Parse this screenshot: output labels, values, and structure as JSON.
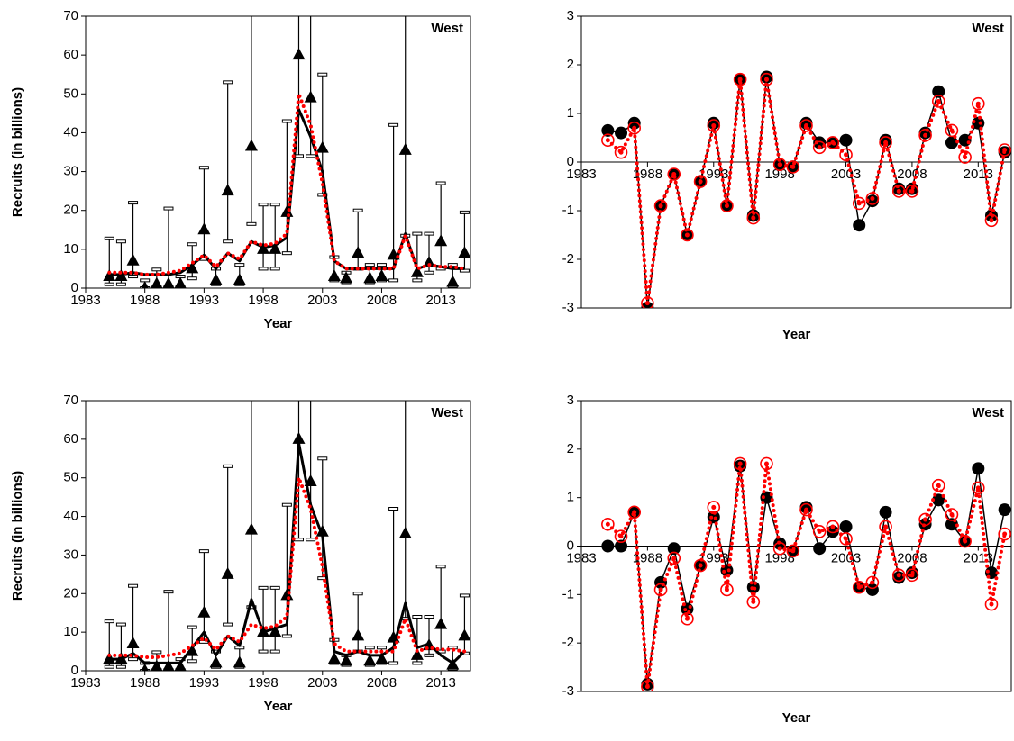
{
  "chart_data": [
    {
      "type": "line",
      "annotation": "West",
      "x_label": "Year",
      "y_label": "Recruits (in billions)",
      "x": [
        1985,
        1986,
        1987,
        1988,
        1989,
        1990,
        1991,
        1992,
        1993,
        1994,
        1995,
        1996,
        1997,
        1998,
        1999,
        2000,
        2001,
        2002,
        2003,
        2004,
        2005,
        2006,
        2007,
        2008,
        2009,
        2010,
        2011,
        2012,
        2013,
        2014,
        2015
      ],
      "xlim": [
        1983,
        2015.5
      ],
      "xticks": [
        1983,
        1988,
        1993,
        1998,
        2003,
        2008,
        2013
      ],
      "ylim": [
        0,
        70
      ],
      "yticks": [
        0,
        10,
        20,
        30,
        40,
        50,
        60,
        70
      ],
      "axis_at_zero": false,
      "series": [
        {
          "color": "#000000",
          "marker": "triangle",
          "values": [
            3,
            3,
            7,
            0,
            1,
            1,
            1,
            5,
            15,
            2,
            25,
            2,
            36.5,
            10,
            10,
            19.5,
            60,
            49,
            36,
            3,
            2.5,
            9,
            2.5,
            3,
            8.5,
            35.5,
            4,
            6.5,
            12,
            1.5,
            9
          ],
          "lower": [
            1,
            1,
            3,
            0,
            0.2,
            0.2,
            0.2,
            2.5,
            7.5,
            1,
            12,
            1,
            16.5,
            5,
            5,
            9,
            34,
            34,
            24,
            2,
            1.5,
            5,
            1.5,
            2,
            2,
            13.5,
            2,
            4,
            5,
            0.5,
            4.5
          ],
          "upper": [
            12.8,
            12,
            22,
            2,
            4.8,
            20.5,
            3,
            11.3,
            31,
            5,
            53,
            6,
            120,
            21.5,
            21.5,
            43,
            150,
            130,
            55,
            8,
            4,
            20,
            6,
            6,
            42,
            100,
            14,
            14,
            27,
            6,
            19.5
          ]
        },
        {
          "color": "#000000",
          "dash": "solid",
          "width": 3,
          "values": [
            3.5,
            3.5,
            4,
            3.5,
            3.5,
            3.5,
            4,
            6,
            8.5,
            5,
            9,
            7,
            12,
            10.5,
            11,
            13,
            46,
            39,
            30,
            7,
            5,
            5,
            5,
            5,
            5,
            14,
            5,
            6,
            5.5,
            5,
            5
          ]
        },
        {
          "color": "#ff0000",
          "dash": "dotted",
          "width": 4,
          "values": [
            4,
            4,
            4,
            3.5,
            3.5,
            4,
            4.5,
            6.5,
            8.5,
            5.5,
            9,
            7.5,
            12,
            11,
            11.5,
            14,
            50,
            42,
            27,
            7,
            5,
            5,
            5,
            5,
            5,
            13.5,
            5,
            6,
            5.5,
            5.5,
            5
          ]
        }
      ]
    },
    {
      "type": "line",
      "annotation": "West",
      "x_label": "Year",
      "x": [
        1985,
        1986,
        1987,
        1988,
        1989,
        1990,
        1991,
        1992,
        1993,
        1994,
        1995,
        1996,
        1997,
        1998,
        1999,
        2000,
        2001,
        2002,
        2003,
        2004,
        2005,
        2006,
        2007,
        2008,
        2009,
        2010,
        2011,
        2012,
        2013,
        2014,
        2015
      ],
      "xlim": [
        1983,
        2015.5
      ],
      "xticks": [
        1983,
        1988,
        1993,
        1998,
        2003,
        2008,
        2013
      ],
      "ylim": [
        -3,
        3
      ],
      "yticks": [
        -3,
        -2,
        -1,
        0,
        1,
        2,
        3
      ],
      "axis_at_zero": true,
      "series": [
        {
          "color": "#000000",
          "dash": "solid",
          "width": 1.5,
          "marker": "circle",
          "values": [
            0.65,
            0.6,
            0.8,
            -3,
            -0.9,
            -0.25,
            -1.5,
            -0.4,
            0.8,
            -0.9,
            1.7,
            -1.1,
            1.75,
            -0.05,
            -0.1,
            0.8,
            0.4,
            0.4,
            0.45,
            -1.3,
            -0.8,
            0.45,
            -0.55,
            -0.55,
            0.6,
            1.45,
            0.4,
            0.45,
            0.8,
            -1.1,
            0.2
          ]
        },
        {
          "color": "#ff0000",
          "dash": "dotted",
          "width": 4,
          "marker": "circle-open",
          "values": [
            0.45,
            0.2,
            0.7,
            -2.9,
            -0.9,
            -0.25,
            -1.5,
            -0.4,
            0.75,
            -0.9,
            1.7,
            -1.15,
            1.7,
            -0.05,
            -0.1,
            0.75,
            0.3,
            0.4,
            0.15,
            -0.85,
            -0.75,
            0.4,
            -0.6,
            -0.6,
            0.55,
            1.25,
            0.65,
            0.1,
            1.2,
            -1.2,
            0.25
          ]
        }
      ]
    },
    {
      "type": "line",
      "annotation": "West",
      "x_label": "Year",
      "y_label": "Recruits (in billions)",
      "x": [
        1985,
        1986,
        1987,
        1988,
        1989,
        1990,
        1991,
        1992,
        1993,
        1994,
        1995,
        1996,
        1997,
        1998,
        1999,
        2000,
        2001,
        2002,
        2003,
        2004,
        2005,
        2006,
        2007,
        2008,
        2009,
        2010,
        2011,
        2012,
        2013,
        2014,
        2015
      ],
      "xlim": [
        1983,
        2015.5
      ],
      "xticks": [
        1983,
        1988,
        1993,
        1998,
        2003,
        2008,
        2013
      ],
      "ylim": [
        0,
        70
      ],
      "yticks": [
        0,
        10,
        20,
        30,
        40,
        50,
        60,
        70
      ],
      "axis_at_zero": false,
      "series": [
        {
          "color": "#000000",
          "marker": "triangle",
          "values": [
            3,
            3,
            7,
            0,
            1,
            1,
            1,
            5,
            15,
            2,
            25,
            2,
            36.5,
            10,
            10,
            19.5,
            60,
            49,
            36,
            3,
            2.5,
            9,
            2.5,
            3,
            8.5,
            35.5,
            4,
            6.5,
            12,
            1.5,
            9
          ],
          "lower": [
            1,
            1,
            3,
            0,
            0.2,
            0.2,
            0.2,
            2.5,
            7.5,
            1,
            12,
            1,
            16.5,
            5,
            5,
            9,
            34,
            34,
            24,
            2,
            1.5,
            5,
            1.5,
            2,
            2,
            13.5,
            2,
            4,
            5,
            0.5,
            4.5
          ],
          "upper": [
            12.8,
            12,
            22,
            2,
            4.8,
            20.5,
            3,
            11.3,
            31,
            5,
            53,
            6,
            120,
            21.5,
            21.5,
            43,
            150,
            130,
            55,
            8,
            4,
            20,
            6,
            6,
            42,
            100,
            14,
            14,
            27,
            6,
            19.5
          ]
        },
        {
          "color": "#000000",
          "dash": "solid",
          "width": 3,
          "values": [
            3,
            3,
            4.5,
            2,
            2,
            2,
            2,
            6,
            10,
            4,
            9,
            6.5,
            18.5,
            10,
            11,
            12,
            59,
            43,
            35,
            5,
            4,
            5,
            4,
            4,
            6,
            17.5,
            6,
            7,
            4,
            2,
            5
          ]
        },
        {
          "color": "#ff0000",
          "dash": "dotted",
          "width": 4,
          "values": [
            4,
            4,
            4,
            3.5,
            3.5,
            4,
            4.5,
            6.5,
            8.5,
            5.5,
            9,
            7.5,
            12,
            11,
            11.5,
            14,
            50,
            42,
            27,
            7,
            5,
            5,
            5,
            5,
            5,
            13.5,
            5,
            6,
            5.5,
            5.5,
            5
          ]
        }
      ]
    },
    {
      "type": "line",
      "annotation": "West",
      "x_label": "Year",
      "x": [
        1985,
        1986,
        1987,
        1988,
        1989,
        1990,
        1991,
        1992,
        1993,
        1994,
        1995,
        1996,
        1997,
        1998,
        1999,
        2000,
        2001,
        2002,
        2003,
        2004,
        2005,
        2006,
        2007,
        2008,
        2009,
        2010,
        2011,
        2012,
        2013,
        2014,
        2015
      ],
      "xlim": [
        1983,
        2015.5
      ],
      "xticks": [
        1983,
        1988,
        1993,
        1998,
        2003,
        2008,
        2013
      ],
      "ylim": [
        -3,
        3
      ],
      "yticks": [
        -3,
        -2,
        -1,
        0,
        1,
        2,
        3
      ],
      "axis_at_zero": true,
      "series": [
        {
          "color": "#000000",
          "dash": "solid",
          "width": 1.5,
          "marker": "circle",
          "values": [
            0,
            0,
            0.7,
            -2.85,
            -0.75,
            -0.05,
            -1.3,
            -0.4,
            0.6,
            -0.5,
            1.65,
            -0.85,
            1,
            0.05,
            -0.1,
            0.8,
            -0.05,
            0.3,
            0.4,
            -0.85,
            -0.9,
            0.7,
            -0.65,
            -0.55,
            0.45,
            0.95,
            0.45,
            0.1,
            1.6,
            -0.55,
            0.75
          ]
        },
        {
          "color": "#ff0000",
          "dash": "dotted",
          "width": 4,
          "marker": "circle-open",
          "values": [
            0.45,
            0.2,
            0.7,
            -2.9,
            -0.9,
            -0.25,
            -1.5,
            -0.4,
            0.8,
            -0.9,
            1.7,
            -1.15,
            1.7,
            -0.05,
            -0.1,
            0.75,
            0.3,
            0.4,
            0.15,
            -0.85,
            -0.75,
            0.4,
            -0.6,
            -0.6,
            0.55,
            1.25,
            0.65,
            0.1,
            1.2,
            -1.2,
            0.25
          ]
        }
      ]
    }
  ]
}
